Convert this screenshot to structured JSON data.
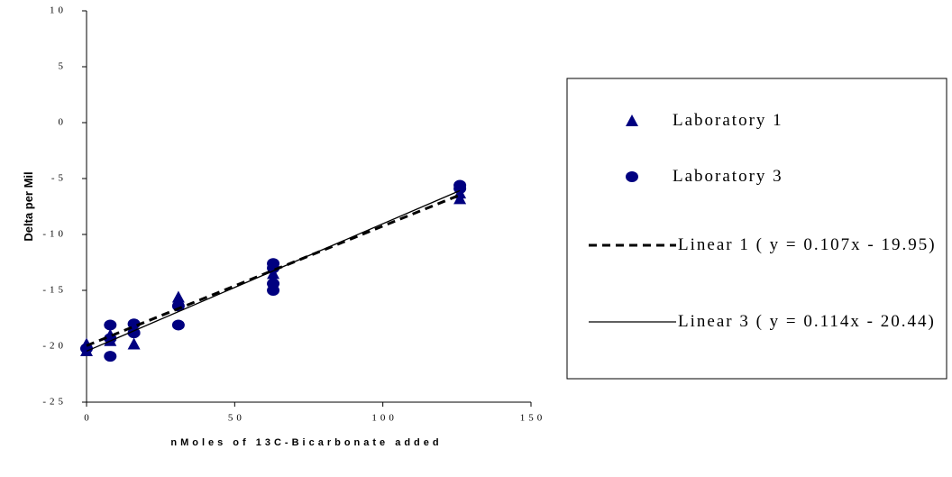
{
  "chart_data": {
    "type": "scatter",
    "xlabel": "nMoles of 13C-Bicarbonate added",
    "ylabel": "Delta per Mil",
    "xlim": [
      0,
      150
    ],
    "xticks": [
      0,
      50,
      100,
      150
    ],
    "ylim": [
      -25,
      10
    ],
    "yticks": [
      10,
      5,
      0,
      -5,
      -10,
      -15,
      -20,
      -25
    ],
    "grid": false,
    "legend": "right",
    "series": [
      {
        "name": "Laboratory 1",
        "color": "#000080",
        "marker": "triangle",
        "x": [
          0,
          0,
          8,
          8,
          16,
          16,
          31,
          31,
          63,
          63,
          126,
          126
        ],
        "values": [
          -19.8,
          -20.4,
          -19.5,
          -19.0,
          -19.8,
          -18.5,
          -15.6,
          -16.0,
          -13.5,
          -14.0,
          -6.3,
          -6.8
        ]
      },
      {
        "name": "Laboratory 3",
        "color": "#000080",
        "marker": "circle",
        "x": [
          0,
          8,
          8,
          8,
          16,
          16,
          31,
          31,
          63,
          63,
          63,
          63,
          126,
          126
        ],
        "values": [
          -20.2,
          -18.1,
          -20.9,
          -19.3,
          -18.0,
          -18.8,
          -16.4,
          -18.1,
          -12.6,
          -13.0,
          -14.4,
          -15.0,
          -5.6,
          -5.9
        ]
      },
      {
        "name": "Linear 1 ( y = 0.107x - 19.95)",
        "color": "#000000",
        "line": "dashed",
        "x": [
          0,
          126
        ],
        "values": [
          -19.95,
          -6.47
        ]
      },
      {
        "name": "Linear 3 ( y = 0.114x - 20.44)",
        "color": "#000000",
        "line": "solid",
        "x": [
          0,
          126
        ],
        "values": [
          -20.44,
          -6.08
        ]
      }
    ]
  }
}
